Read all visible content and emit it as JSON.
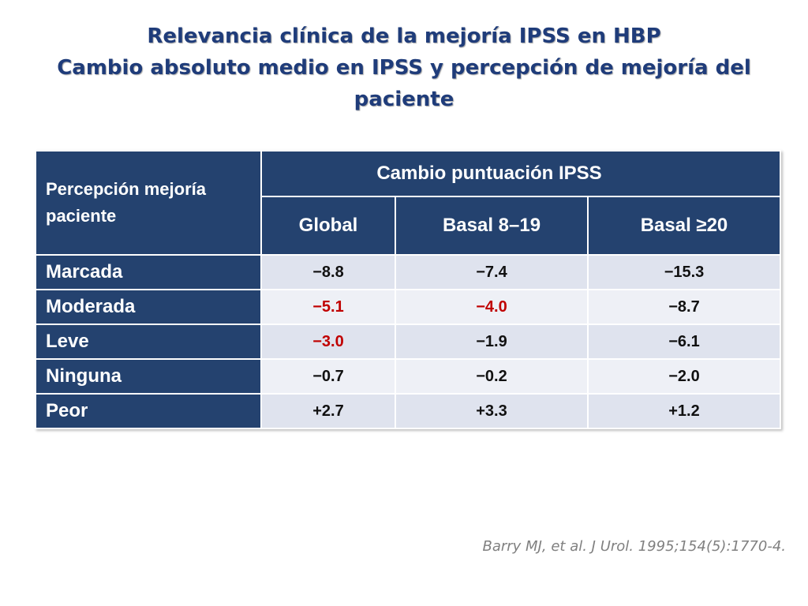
{
  "slide": {
    "title_line1": "Relevancia clínica de la mejoría IPSS en HBP",
    "title_line2": "Cambio absoluto medio en IPSS y percepción de mejoría del",
    "title_line3": "paciente"
  },
  "table": {
    "corner_label": "Percepción mejoría paciente",
    "group_header": "Cambio puntuación IPSS",
    "columns": [
      "Global",
      "Basal 8–19",
      "Basal ≥20"
    ],
    "rows": [
      {
        "label": "Marcada",
        "values": [
          "−8.8",
          "−7.4",
          "−15.3"
        ],
        "highlight": [
          false,
          false,
          false
        ]
      },
      {
        "label": "Moderada",
        "values": [
          "−5.1",
          "−4.0",
          "−8.7"
        ],
        "highlight": [
          true,
          true,
          false
        ]
      },
      {
        "label": "Leve",
        "values": [
          "−3.0",
          "−1.9",
          "−6.1"
        ],
        "highlight": [
          true,
          false,
          false
        ]
      },
      {
        "label": "Ninguna",
        "values": [
          "−0.7",
          "−0.2",
          "−2.0"
        ],
        "highlight": [
          false,
          false,
          false
        ]
      },
      {
        "label": "Peor",
        "values": [
          "+2.7",
          "+3.3",
          "+1.2"
        ],
        "highlight": [
          false,
          false,
          false
        ]
      }
    ]
  },
  "reference": "Barry MJ, et al. J Urol. 1995;154(5):1770-4.",
  "colors": {
    "title": "#1f3c7a",
    "header_bg": "#24426f",
    "cell_bg": "#dfe3ee",
    "highlight_text": "#c00000",
    "reference_text": "#808080"
  }
}
